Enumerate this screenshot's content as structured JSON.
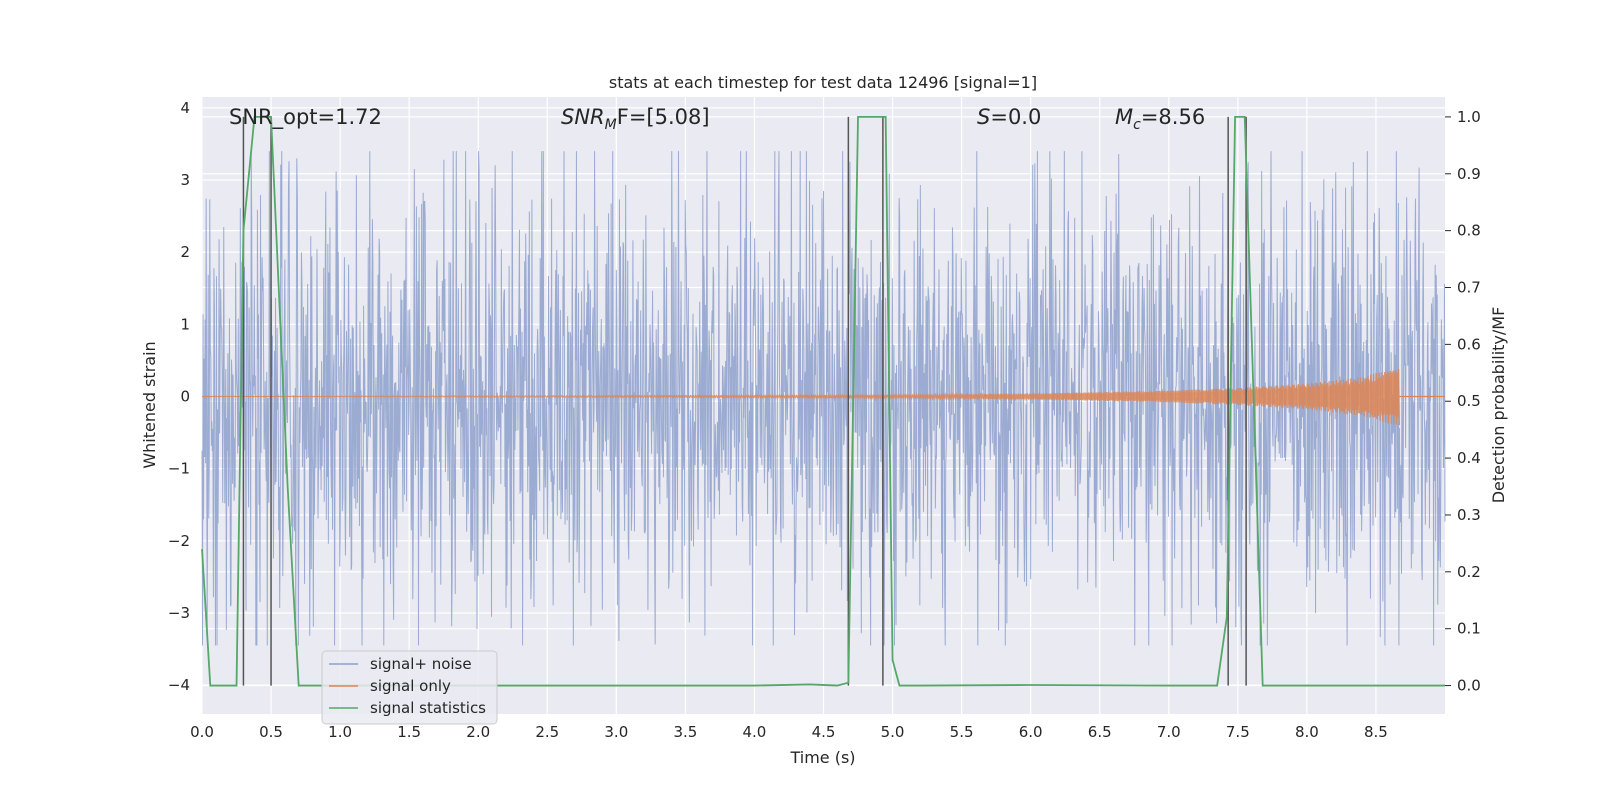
{
  "chart_data": {
    "type": "line",
    "title": "stats at each timestep for test data 12496 [signal=1]",
    "xlabel": "Time (s)",
    "ylabel_left": "Whitened strain",
    "ylabel_right": "Detection probability/MF",
    "xlim": [
      0.0,
      9.0
    ],
    "ylim_left": [
      -4.4,
      4.15
    ],
    "ylim_right": [
      -0.05,
      1.035
    ],
    "x_ticks": [
      "0.0",
      "0.5",
      "1.0",
      "1.5",
      "2.0",
      "2.5",
      "3.0",
      "3.5",
      "4.0",
      "4.5",
      "5.0",
      "5.5",
      "6.0",
      "6.5",
      "7.0",
      "7.5",
      "8.0",
      "8.5"
    ],
    "y_ticks_left": [
      "−4",
      "−3",
      "−2",
      "−1",
      "0",
      "1",
      "2",
      "3",
      "4"
    ],
    "y_ticks_right": [
      "0.0",
      "0.1",
      "0.2",
      "0.3",
      "0.4",
      "0.5",
      "0.6",
      "0.7",
      "0.8",
      "0.9",
      "1.0"
    ],
    "grid": true,
    "legend_placement": "lower-left",
    "annotations": {
      "snr_opt": "SNR_opt=1.72",
      "snr_mf_symbol": "SNR",
      "snr_mf_sub": "M",
      "snr_mf_rest": "F=[5.08]",
      "s_symbol": "S",
      "s_rest": "=0.0",
      "mc_symbol": "M",
      "mc_sub": "c",
      "mc_rest": "=8.56"
    },
    "series": [
      {
        "name": "signal+ noise",
        "color": "#8da0cb",
        "description_values": "whitened strain noise, approx. within [-3.5, 3.4]",
        "x_range": [
          0.0,
          9.0
        ],
        "typical_amplitude": 1.5,
        "max_spike": 3.4
      },
      {
        "name": "signal only",
        "color": "#dd8452",
        "x_range": [
          0.0,
          8.67
        ],
        "envelope": [
          [
            0.0,
            0.0
          ],
          [
            5.0,
            0.02
          ],
          [
            6.0,
            0.04
          ],
          [
            7.0,
            0.08
          ],
          [
            7.5,
            0.12
          ],
          [
            8.0,
            0.18
          ],
          [
            8.4,
            0.27
          ],
          [
            8.6,
            0.38
          ],
          [
            8.67,
            0.4
          ]
        ]
      },
      {
        "name": "signal statistics",
        "color": "#55a868",
        "axis": "right",
        "x": [
          0.0,
          0.06,
          0.25,
          0.3,
          0.38,
          0.5,
          0.62,
          0.7,
          1.0,
          2.0,
          3.0,
          4.0,
          4.4,
          4.6,
          4.68,
          4.75,
          4.95,
          5.0,
          5.05,
          5.2,
          6.0,
          7.0,
          7.35,
          7.42,
          7.48,
          7.55,
          7.68,
          7.75,
          8.0,
          9.0
        ],
        "y": [
          0.24,
          0.0,
          0.0,
          0.8,
          1.0,
          1.0,
          0.35,
          0.0,
          0.0,
          0.0,
          0.0,
          0.0,
          0.002,
          0.0,
          0.005,
          1.0,
          1.0,
          0.045,
          0.0,
          0.0,
          0.001,
          0.0,
          0.0,
          0.12,
          1.0,
          1.0,
          0.0,
          0.0,
          0.0,
          0.0
        ]
      }
    ],
    "vertical_markers_s": [
      0.3,
      0.5,
      4.68,
      4.93,
      7.43,
      7.56
    ]
  }
}
